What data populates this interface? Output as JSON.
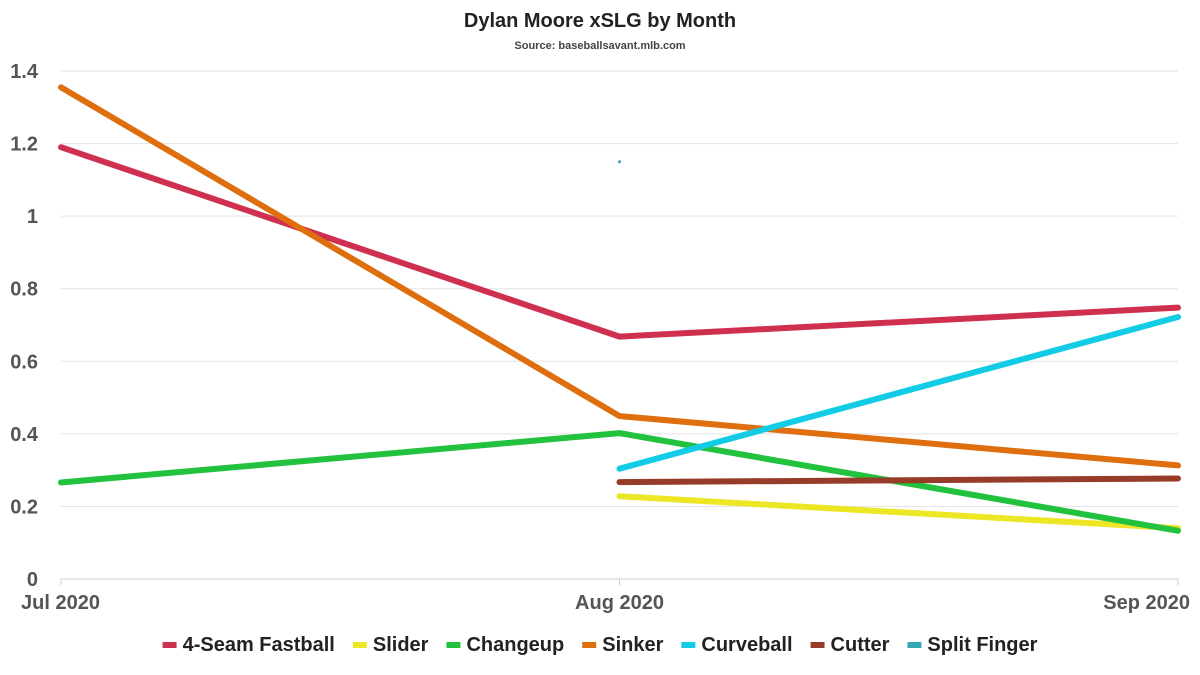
{
  "chart_data": {
    "type": "line",
    "title": "Dylan Moore xSLG by Month",
    "subtitle": "Source: baseballsavant.mlb.com",
    "xlabel": "",
    "ylabel": "",
    "categories": [
      "Jul 2020",
      "Aug 2020",
      "Sep 2020"
    ],
    "ylim": [
      0,
      1.4
    ],
    "yticks": [
      {
        "value": 0,
        "label": "0"
      },
      {
        "value": 0.2,
        "label": "0.2"
      },
      {
        "value": 0.4,
        "label": "0.4"
      },
      {
        "value": 0.6,
        "label": "0.6"
      },
      {
        "value": 0.8,
        "label": "0.8"
      },
      {
        "value": 1.0,
        "label": "1"
      },
      {
        "value": 1.2,
        "label": "1.2"
      },
      {
        "value": 1.4,
        "label": "1.4"
      }
    ],
    "grid": true,
    "legend_position": "bottom",
    "series": [
      {
        "name": "4-Seam Fastball",
        "color": "#d0304f",
        "values": [
          1.19,
          0.668,
          0.748
        ]
      },
      {
        "name": "Slider",
        "color": "#ece624",
        "values": [
          null,
          0.228,
          0.14
        ]
      },
      {
        "name": "Changeup",
        "color": "#22c23f",
        "values": [
          0.266,
          0.402,
          0.133
        ]
      },
      {
        "name": "Sinker",
        "color": "#de6e0e",
        "values": [
          1.355,
          0.449,
          0.313
        ]
      },
      {
        "name": "Curveball",
        "color": "#12cce6",
        "values": [
          null,
          0.304,
          0.722
        ]
      },
      {
        "name": "Cutter",
        "color": "#983c2a",
        "values": [
          null,
          0.267,
          0.277
        ]
      },
      {
        "name": "Split Finger",
        "color": "#33a8b3",
        "values": [
          null,
          1.15,
          null
        ]
      }
    ]
  }
}
